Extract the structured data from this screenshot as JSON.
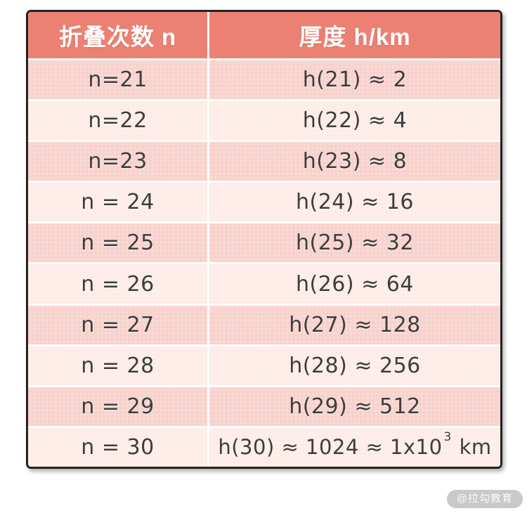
{
  "table": {
    "header": {
      "col_n": "折叠次数 n",
      "col_h": "厚度 h/km"
    },
    "rows": [
      {
        "n": "n=21",
        "h": "h(21) ≈ 2"
      },
      {
        "n": "n=22",
        "h": "h(22) ≈ 4"
      },
      {
        "n": "n=23",
        "h": "h(23) ≈ 8"
      },
      {
        "n": "n = 24",
        "h": "h(24) ≈ 16"
      },
      {
        "n": "n = 25",
        "h": "h(25) ≈ 32"
      },
      {
        "n": "n = 26",
        "h": "h(26) ≈ 64"
      },
      {
        "n": "n = 27",
        "h": "h(27) ≈ 128"
      },
      {
        "n": "n = 28",
        "h": "h(28) ≈ 256"
      },
      {
        "n": "n = 29",
        "h": "h(29) ≈ 512"
      },
      {
        "n": "n = 30",
        "h_prefix": "h(30) ≈ 1024 ≈ 1x10",
        "h_sup": "3",
        "h_suffix": " km"
      }
    ]
  },
  "chart_data": {
    "type": "table",
    "title": "",
    "columns": [
      "折叠次数 n",
      "厚度 h/km"
    ],
    "n_values": [
      21,
      22,
      23,
      24,
      25,
      26,
      27,
      28,
      29,
      30
    ],
    "h_km_values": [
      2,
      4,
      8,
      16,
      32,
      64,
      128,
      256,
      512,
      1024
    ],
    "rows": [
      [
        "n=21",
        "h(21) ≈ 2"
      ],
      [
        "n=22",
        "h(22) ≈ 4"
      ],
      [
        "n=23",
        "h(23) ≈ 8"
      ],
      [
        "n = 24",
        "h(24) ≈ 16"
      ],
      [
        "n = 25",
        "h(25) ≈ 32"
      ],
      [
        "n = 26",
        "h(26) ≈ 64"
      ],
      [
        "n = 27",
        "h(27) ≈ 128"
      ],
      [
        "n = 28",
        "h(28) ≈ 256"
      ],
      [
        "n = 29",
        "h(29) ≈ 512"
      ],
      [
        "n = 30",
        "h(30) ≈ 1024 ≈ 1x10³ km"
      ]
    ],
    "legend_position": "none",
    "grid": "white separator lines"
  },
  "watermark": {
    "label": "@拉勾教育"
  },
  "colors": {
    "header_bg": "#ec8173",
    "row_medium_pink": "#f8d3cd",
    "row_light_pink": "#fdece8",
    "border": "#232323",
    "cell_text": "#3d3d3d",
    "header_text": "#ffffff",
    "watermark_bg": "#c9c9c9",
    "watermark_text": "#fbfbfb"
  }
}
